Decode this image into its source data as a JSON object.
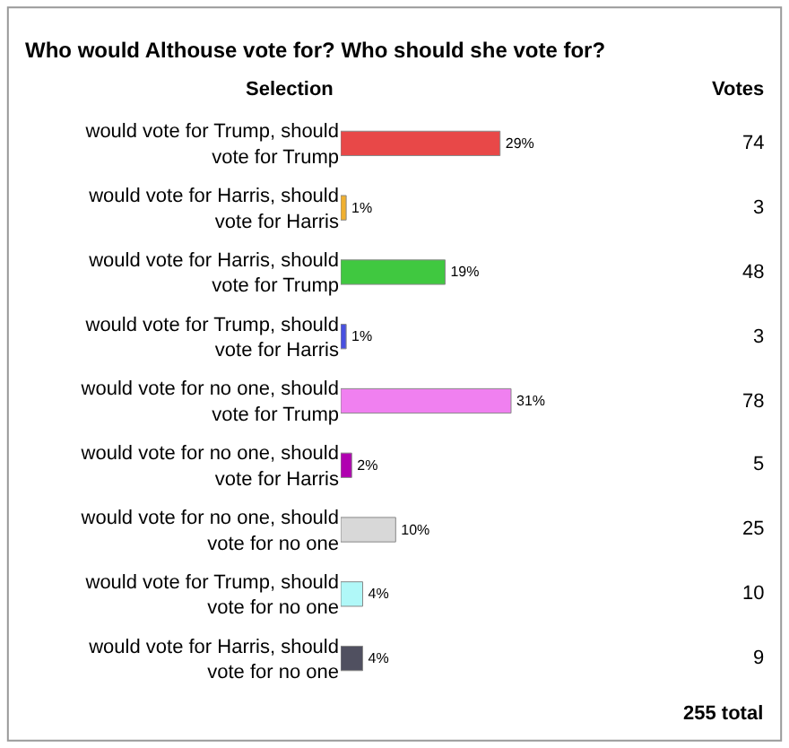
{
  "chart_data": {
    "type": "bar",
    "orientation": "horizontal",
    "title": "Who would Althouse vote for? Who should she vote for?",
    "categories": [
      "would vote for Trump, should vote for Trump",
      "would vote for Harris, should vote for Harris",
      "would vote for Harris, should vote for Trump",
      "would vote for Trump, should vote for Harris",
      "would vote for no one, should vote for Trump",
      "would vote for no one, should vote for Harris",
      "would vote for no one, should vote for no one",
      "would vote for Trump, should vote for no one",
      "would vote for Harris, should vote for no one"
    ],
    "values": [
      29,
      1,
      19,
      1,
      31,
      2,
      10,
      4,
      4
    ],
    "colors": [
      "#e84848",
      "#f0b030",
      "#40c840",
      "#4850e0",
      "#f080f0",
      "#b000b0",
      "#d8d8d8",
      "#b0f8f8",
      "#505060"
    ],
    "value_labels": [
      "29%",
      "1%",
      "19%",
      "1%",
      "31%",
      "2%",
      "10%",
      "4%",
      "4%"
    ],
    "annotations": [
      "Selection",
      "Votes",
      "255 total",
      "74",
      "3",
      "48",
      "3",
      "78",
      "5",
      "25",
      "10",
      "9"
    ],
    "legend": false
  }
}
